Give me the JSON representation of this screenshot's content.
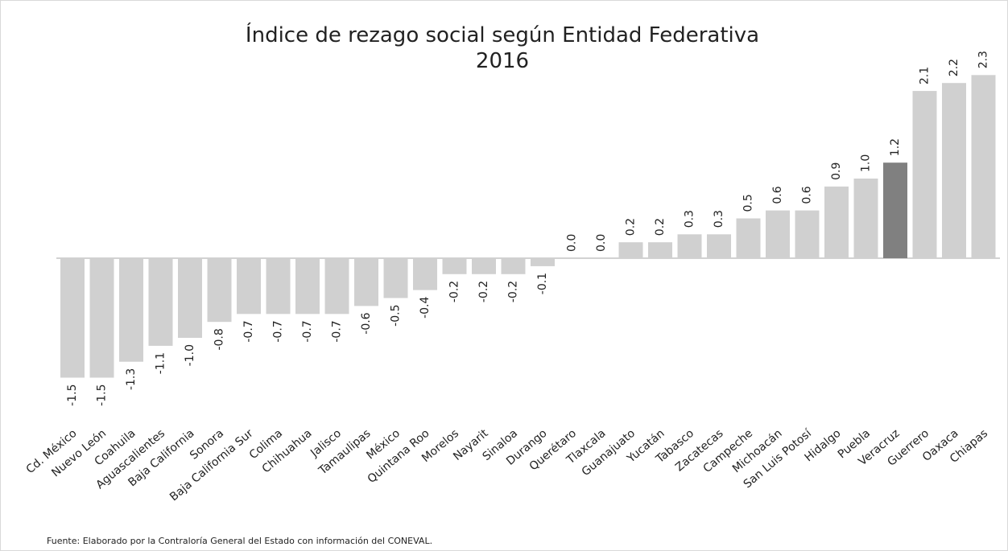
{
  "chart_data": {
    "type": "bar",
    "title": "Índice de rezago social según Entidad Federativa",
    "subtitle": "2016",
    "note": "Fuente: Elaborado por la Contraloría General del Estado con información del CONEVAL.",
    "categories": [
      "Cd. México",
      "Nuevo León",
      "Coahuila",
      "Aguascalientes",
      "Baja California",
      "Sonora",
      "Baja California Sur",
      "Colima",
      "Chihuahua",
      "Jalisco",
      "Tamaulipas",
      "México",
      "Quintana Roo",
      "Morelos",
      "Nayarit",
      "Sinaloa",
      "Durango",
      "Querétaro",
      "Tlaxcala",
      "Guanajuato",
      "Yucatán",
      "Tabasco",
      "Zacatecas",
      "Campeche",
      "Michoacán",
      "San Luis Potosí",
      "Hidalgo",
      "Puebla",
      "Veracruz",
      "Guerrero",
      "Oaxaca",
      "Chiapas"
    ],
    "values": [
      -1.5,
      -1.5,
      -1.3,
      -1.1,
      -1.0,
      -0.8,
      -0.7,
      -0.7,
      -0.7,
      -0.7,
      -0.6,
      -0.5,
      -0.4,
      -0.2,
      -0.2,
      -0.2,
      -0.1,
      0.0,
      0.0,
      0.2,
      0.2,
      0.3,
      0.3,
      0.5,
      0.6,
      0.6,
      0.9,
      1.0,
      1.2,
      2.1,
      2.2,
      2.3
    ],
    "value_labels": [
      "-1.5",
      "-1.5",
      "-1.3",
      "-1.1",
      "-1.0",
      "-0.8",
      "-0.7",
      "-0.7",
      "-0.7",
      "-0.7",
      "-0.6",
      "-0.5",
      "-0.4",
      "-0.2",
      "-0.2",
      "-0.2",
      "-0.1",
      "0.0",
      "0.0",
      "0.2",
      "0.2",
      "0.3",
      "0.3",
      "0.5",
      "0.6",
      "0.6",
      "0.9",
      "1.0",
      "1.2",
      "2.1",
      "2.2",
      "2.3"
    ],
    "colors": [
      "#d0d0d0",
      "#d0d0d0",
      "#d0d0d0",
      "#d0d0d0",
      "#d0d0d0",
      "#d0d0d0",
      "#d0d0d0",
      "#d0d0d0",
      "#d0d0d0",
      "#d0d0d0",
      "#d0d0d0",
      "#d0d0d0",
      "#d0d0d0",
      "#d0d0d0",
      "#d0d0d0",
      "#d0d0d0",
      "#d0d0d0",
      "#d0d0d0",
      "#d0d0d0",
      "#d0d0d0",
      "#d0d0d0",
      "#d0d0d0",
      "#d0d0d0",
      "#d0d0d0",
      "#d0d0d0",
      "#d0d0d0",
      "#d0d0d0",
      "#d0d0d0",
      "#808080",
      "#d0d0d0",
      "#d0d0d0",
      "#d0d0d0"
    ]
  }
}
